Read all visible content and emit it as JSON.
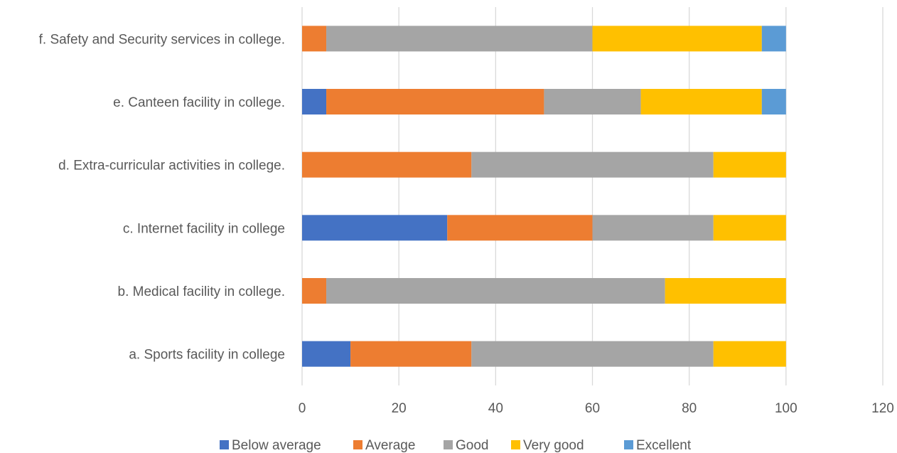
{
  "chart_data": {
    "type": "bar",
    "orientation": "horizontal",
    "stacked": true,
    "categories": [
      "a. Sports facility in college",
      "b. Medical facility in college.",
      "c. Internet facility in college",
      "d. Extra-curricular activities in college.",
      "e. Canteen facility in college.",
      "f. Safety and Security services in college."
    ],
    "series": [
      {
        "name": "Below average",
        "color": "#4472C4",
        "values": [
          10,
          0,
          30,
          0,
          5,
          0
        ]
      },
      {
        "name": "Average",
        "color": "#ED7D31",
        "values": [
          25,
          5,
          30,
          35,
          45,
          5
        ]
      },
      {
        "name": "Good",
        "color": "#A5A5A5",
        "values": [
          50,
          70,
          25,
          50,
          20,
          55
        ]
      },
      {
        "name": "Very good",
        "color": "#FFC000",
        "values": [
          15,
          25,
          15,
          15,
          25,
          35
        ]
      },
      {
        "name": "Excellent",
        "color": "#5B9BD5",
        "values": [
          0,
          0,
          0,
          0,
          5,
          5
        ]
      }
    ],
    "xlim": [
      0,
      120
    ],
    "xticks": [
      "0",
      "20",
      "40",
      "60",
      "80",
      "100",
      "120"
    ],
    "grid": "vertical",
    "legend": "bottom",
    "title": "",
    "xlabel": "",
    "ylabel": ""
  }
}
